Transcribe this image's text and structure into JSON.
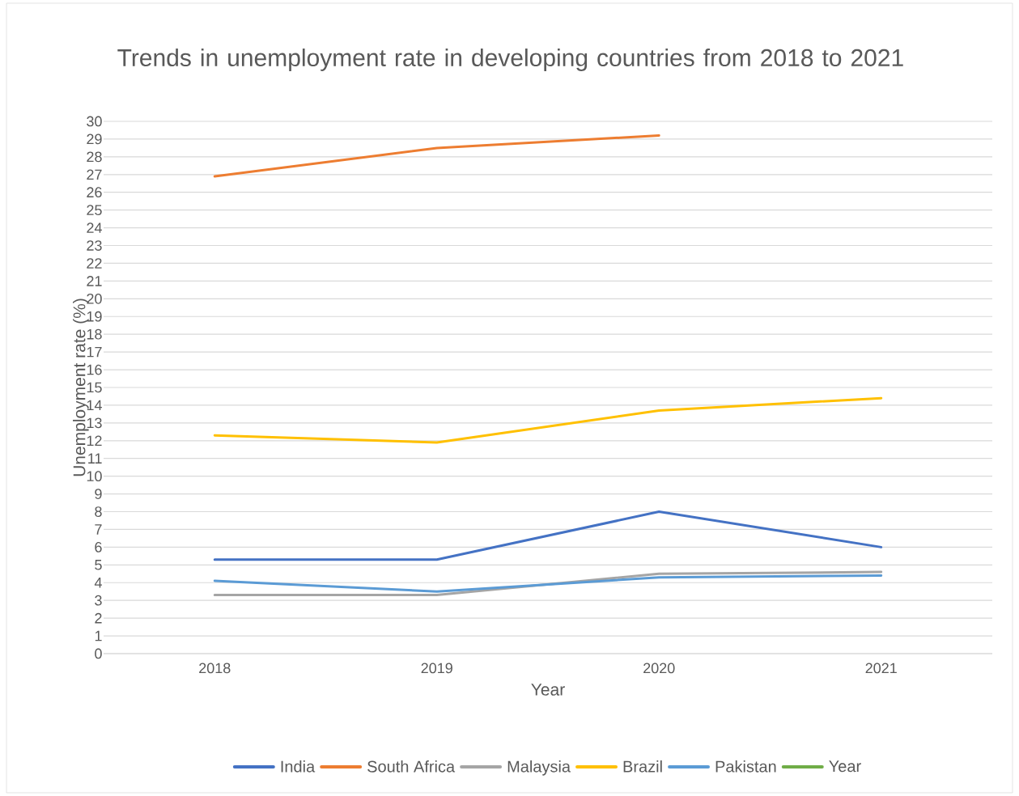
{
  "chart_data": {
    "type": "line",
    "title": "Trends in unemployment rate in developing countries from 2018 to 2021",
    "xlabel": "Year",
    "ylabel": "Unemployment rate (%)",
    "categories": [
      "2018",
      "2019",
      "2020",
      "2021"
    ],
    "series": [
      {
        "name": "India",
        "color": "#4472c4",
        "values": [
          5.3,
          5.3,
          8.0,
          6.0
        ]
      },
      {
        "name": "South Africa",
        "color": "#ed7d31",
        "values": [
          26.9,
          28.5,
          29.2,
          null
        ]
      },
      {
        "name": "Malaysia",
        "color": "#a5a5a5",
        "values": [
          3.3,
          3.3,
          4.5,
          4.6
        ]
      },
      {
        "name": "Brazil",
        "color": "#ffc000",
        "values": [
          12.3,
          11.9,
          13.7,
          14.4
        ]
      },
      {
        "name": "Pakistan",
        "color": "#5b9bd5",
        "values": [
          4.1,
          3.5,
          4.3,
          4.4
        ]
      },
      {
        "name": "Year",
        "color": "#70ad47",
        "values": [
          null,
          null,
          null,
          null
        ]
      }
    ],
    "ylim": [
      0,
      30
    ],
    "yticks": [
      0,
      1,
      2,
      3,
      4,
      5,
      6,
      7,
      8,
      9,
      10,
      11,
      12,
      13,
      14,
      15,
      16,
      17,
      18,
      19,
      20,
      21,
      22,
      23,
      24,
      25,
      26,
      27,
      28,
      29,
      30
    ],
    "grid": "y",
    "legend": "bottom",
    "line_style": "solid",
    "marker": "none"
  }
}
